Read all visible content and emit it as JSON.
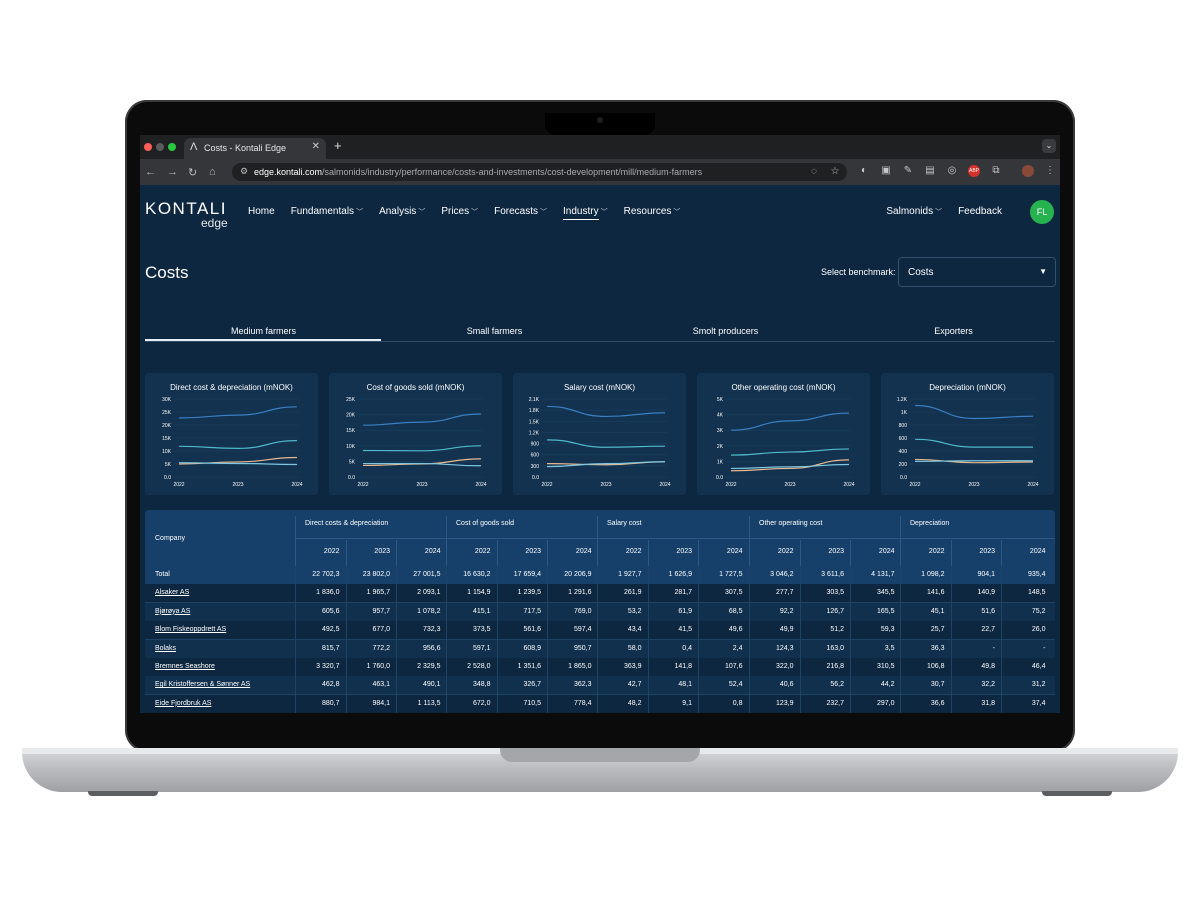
{
  "browser": {
    "tab_title": "Costs - Kontali Edge",
    "tab_logo": "kontali-logo-icon",
    "new_tab": "+",
    "url_host": "edge.kontali.com",
    "url_path": "/salmonids/industry/performance/costs-and-investments/cost-development/mill/medium-farmers"
  },
  "site": {
    "logo_main": "KONTALI",
    "logo_sub": "edge",
    "nav": [
      "Home",
      "Fundamentals",
      "Analysis",
      "Prices",
      "Forecasts",
      "Industry",
      "Resources"
    ],
    "nav_active": "Industry",
    "species": "Salmonids",
    "feedback": "Feedback",
    "avatar": "FL"
  },
  "page": {
    "title": "Costs",
    "benchmark_label": "Select benchmark:",
    "benchmark_value": "Costs",
    "tabs": [
      "Medium farmers",
      "Small farmers",
      "Smolt producers",
      "Exporters"
    ],
    "active_tab": "Medium farmers"
  },
  "colors": {
    "series_1": "#3b7fc4",
    "series_2": "#4fb9c9",
    "series_3": "#e8b98f",
    "series_4": "#7fc7e0",
    "positive_badge": "#26b24f"
  },
  "chart_data": [
    {
      "type": "line",
      "title": "Direct cost & depreciation (mNOK)",
      "x": [
        "2022",
        "2023",
        "2024"
      ],
      "yticks": [
        "0.0",
        "5K",
        "10K",
        "15K",
        "20K",
        "25K",
        "30K"
      ],
      "ylim": [
        0,
        30000
      ],
      "series": [
        {
          "values": [
            22700,
            23800,
            27000
          ]
        },
        {
          "values": [
            11800,
            11000,
            14000
          ]
        },
        {
          "values": [
            5000,
            5800,
            7500
          ]
        },
        {
          "values": [
            5500,
            5200,
            4800
          ]
        }
      ]
    },
    {
      "type": "line",
      "title": "Cost of goods sold (mNOK)",
      "x": [
        "2022",
        "2023",
        "2024"
      ],
      "yticks": [
        "0.0",
        "5K",
        "10K",
        "15K",
        "20K",
        "25K"
      ],
      "ylim": [
        0,
        25000
      ],
      "series": [
        {
          "values": [
            16600,
            17600,
            20200
          ]
        },
        {
          "values": [
            8500,
            8400,
            10000
          ]
        },
        {
          "values": [
            3700,
            4200,
            5800
          ]
        },
        {
          "values": [
            4300,
            4300,
            3600
          ]
        }
      ]
    },
    {
      "type": "line",
      "title": "Salary cost (mNOK)",
      "x": [
        "2022",
        "2023",
        "2024"
      ],
      "yticks": [
        "0.0",
        "300",
        "600",
        "900",
        "1.2K",
        "1.5K",
        "1.8K",
        "2.1K"
      ],
      "ylim": [
        0,
        2100
      ],
      "series": [
        {
          "values": [
            1900,
            1630,
            1730
          ]
        },
        {
          "values": [
            1000,
            800,
            830
          ]
        },
        {
          "values": [
            360,
            330,
            410
          ]
        },
        {
          "values": [
            280,
            360,
            410
          ]
        }
      ]
    },
    {
      "type": "line",
      "title": "Other operating cost (mNOK)",
      "x": [
        "2022",
        "2023",
        "2024"
      ],
      "yticks": [
        "0.0",
        "1K",
        "2K",
        "3K",
        "4K",
        "5K"
      ],
      "ylim": [
        0,
        5000
      ],
      "series": [
        {
          "values": [
            3000,
            3600,
            4100
          ]
        },
        {
          "values": [
            1400,
            1600,
            1800
          ]
        },
        {
          "values": [
            400,
            550,
            1100
          ]
        },
        {
          "values": [
            550,
            650,
            800
          ]
        }
      ]
    },
    {
      "type": "line",
      "title": "Depreciation (mNOK)",
      "x": [
        "2022",
        "2023",
        "2024"
      ],
      "yticks": [
        "0.0",
        "200",
        "400",
        "600",
        "800",
        "1K",
        "1.2K"
      ],
      "ylim": [
        0,
        1200
      ],
      "series": [
        {
          "values": [
            1100,
            900,
            935
          ]
        },
        {
          "values": [
            580,
            460,
            460
          ]
        },
        {
          "values": [
            270,
            220,
            230
          ]
        },
        {
          "values": [
            240,
            250,
            250
          ]
        }
      ]
    }
  ],
  "table": {
    "company_header": "Company",
    "groups": [
      "Direct costs & depreciation",
      "Cost of goods sold",
      "Salary cost",
      "Other operating cost",
      "Depreciation"
    ],
    "years": [
      "2022",
      "2023",
      "2024"
    ],
    "rows": [
      {
        "name": "Total",
        "link": false,
        "values": [
          "22 702,3",
          "23 802,0",
          "27 001,5",
          "16 630,2",
          "17 659,4",
          "20 206,9",
          "1 927,7",
          "1 626,9",
          "1 727,5",
          "3 046,2",
          "3 611,6",
          "4 131,7",
          "1 098,2",
          "904,1",
          "935,4"
        ]
      },
      {
        "name": "Alsaker AS",
        "link": true,
        "values": [
          "1 836,0",
          "1 965,7",
          "2 093,1",
          "1 154,9",
          "1 239,5",
          "1 291,6",
          "261,9",
          "281,7",
          "307,5",
          "277,7",
          "303,5",
          "345,5",
          "141,6",
          "140,9",
          "148,5"
        ]
      },
      {
        "name": "Bjørøya AS",
        "link": true,
        "values": [
          "605,6",
          "957,7",
          "1 078,2",
          "415,1",
          "717,5",
          "769,0",
          "53,2",
          "61,9",
          "68,5",
          "92,2",
          "126,7",
          "165,5",
          "45,1",
          "51,6",
          "75,2"
        ]
      },
      {
        "name": "Blom Fiskeoppdrett AS",
        "link": true,
        "values": [
          "492,5",
          "677,0",
          "732,3",
          "373,5",
          "561,6",
          "597,4",
          "43,4",
          "41,5",
          "49,6",
          "49,9",
          "51,2",
          "59,3",
          "25,7",
          "22,7",
          "26,0"
        ]
      },
      {
        "name": "Bolaks",
        "link": true,
        "values": [
          "815,7",
          "772,2",
          "956,6",
          "597,1",
          "608,9",
          "950,7",
          "58,0",
          "0,4",
          "2,4",
          "124,3",
          "163,0",
          "3,5",
          "36,3",
          "-",
          "-"
        ]
      },
      {
        "name": "Bremnes Seashore",
        "link": true,
        "values": [
          "3 320,7",
          "1 760,0",
          "2 329,5",
          "2 528,0",
          "1 351,6",
          "1 865,0",
          "363,9",
          "141,8",
          "107,6",
          "322,0",
          "216,8",
          "310,5",
          "106,8",
          "49,8",
          "46,4"
        ]
      },
      {
        "name": "Egil Kristoffersen & Sønner AS",
        "link": true,
        "values": [
          "462,8",
          "463,1",
          "490,1",
          "348,8",
          "326,7",
          "362,3",
          "42,7",
          "48,1",
          "52,4",
          "40,6",
          "56,2",
          "44,2",
          "30,7",
          "32,2",
          "31,2"
        ]
      },
      {
        "name": "Eide Fjordbruk AS",
        "link": true,
        "values": [
          "880,7",
          "984,1",
          "1 113,5",
          "672,0",
          "710,5",
          "778,4",
          "48,2",
          "9,1",
          "0,8",
          "123,9",
          "232,7",
          "297,0",
          "36,6",
          "31,8",
          "37,4"
        ]
      }
    ]
  }
}
